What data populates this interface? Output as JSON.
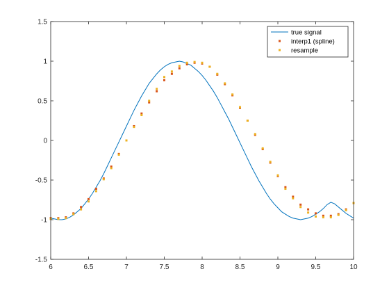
{
  "chart_data": {
    "type": "line",
    "title": "",
    "xlabel": "",
    "ylabel": "",
    "xlim": [
      6,
      10
    ],
    "ylim": [
      -1.5,
      1.5
    ],
    "x_ticks": [
      "6",
      "6.5",
      "7",
      "7.5",
      "8",
      "8.5",
      "9",
      "9.5",
      "10"
    ],
    "x_tick_values": [
      6,
      6.5,
      7,
      7.5,
      8,
      8.5,
      9,
      9.5,
      10
    ],
    "y_ticks": [
      "1.5",
      "1",
      "0.5",
      "0",
      "-0.5",
      "-1",
      "-1.5"
    ],
    "y_tick_values": [
      1.5,
      1,
      0.5,
      0,
      -0.5,
      -1,
      -1.5
    ],
    "grid": false,
    "box": true,
    "legend_position": "top-right",
    "series": [
      {
        "name": "true signal",
        "style": "line",
        "color": "#0072bd",
        "x": [
          6.0,
          6.05,
          6.1,
          6.15,
          6.2,
          6.25,
          6.3,
          6.35,
          6.4,
          6.45,
          6.5,
          6.55,
          6.6,
          6.65,
          6.7,
          6.75,
          6.8,
          6.85,
          6.9,
          6.95,
          7.0,
          7.05,
          7.1,
          7.15,
          7.2,
          7.25,
          7.3,
          7.35,
          7.4,
          7.45,
          7.5,
          7.55,
          7.6,
          7.65,
          7.7,
          7.75,
          7.8,
          7.85,
          7.9,
          7.95,
          8.0,
          8.05,
          8.1,
          8.15,
          8.2,
          8.25,
          8.3,
          8.35,
          8.4,
          8.45,
          8.5,
          8.55,
          8.6,
          8.65,
          8.7,
          8.75,
          8.8,
          8.85,
          8.9,
          8.95,
          9.0,
          9.05,
          9.1,
          9.15,
          9.2,
          9.25,
          9.3,
          9.35,
          9.4,
          9.45,
          9.5,
          9.55,
          9.6,
          9.65,
          9.7,
          9.75,
          9.8,
          9.85,
          9.9,
          9.95,
          10.0
        ],
        "y": [
          -0.98,
          -0.99,
          -1.0,
          -1.0,
          -0.99,
          -0.97,
          -0.94,
          -0.9,
          -0.86,
          -0.8,
          -0.74,
          -0.67,
          -0.59,
          -0.51,
          -0.42,
          -0.32,
          -0.22,
          -0.12,
          -0.02,
          0.08,
          0.18,
          0.28,
          0.38,
          0.47,
          0.56,
          0.64,
          0.72,
          0.78,
          0.84,
          0.89,
          0.93,
          0.96,
          0.98,
          0.99,
          1.0,
          0.99,
          0.97,
          0.95,
          0.91,
          0.87,
          0.82,
          0.76,
          0.69,
          0.62,
          0.54,
          0.45,
          0.36,
          0.27,
          0.17,
          0.07,
          -0.03,
          -0.13,
          -0.23,
          -0.33,
          -0.42,
          -0.51,
          -0.59,
          -0.67,
          -0.74,
          -0.8,
          -0.85,
          -0.9,
          -0.93,
          -0.96,
          -0.98,
          -0.99,
          -1.0,
          -0.99,
          -0.98,
          -0.96,
          -0.93,
          -0.9,
          -0.86,
          -0.81,
          -0.78,
          -0.8,
          -0.84,
          -0.88,
          -0.92,
          -0.95,
          -0.98
        ]
      },
      {
        "name": "interp1 (spline)",
        "style": "points",
        "color": "#d95319",
        "x": [
          6.0,
          6.1,
          6.2,
          6.3,
          6.4,
          6.5,
          6.6,
          6.7,
          6.8,
          6.9,
          7.0,
          7.1,
          7.2,
          7.3,
          7.4,
          7.5,
          7.6,
          7.7,
          7.8,
          7.9,
          8.0,
          8.1,
          8.2,
          8.3,
          8.4,
          8.5,
          8.6,
          8.7,
          8.8,
          8.9,
          9.0,
          9.1,
          9.2,
          9.3,
          9.4,
          9.5,
          9.6,
          9.7,
          9.8,
          9.9,
          10.0
        ],
        "y": [
          -0.98,
          -0.98,
          -0.97,
          -0.92,
          -0.84,
          -0.74,
          -0.61,
          -0.48,
          -0.33,
          -0.17,
          0.0,
          0.18,
          0.34,
          0.48,
          0.62,
          0.76,
          0.84,
          0.91,
          0.96,
          0.98,
          0.97,
          0.93,
          0.83,
          0.71,
          0.57,
          0.41,
          0.25,
          0.07,
          -0.11,
          -0.28,
          -0.45,
          -0.59,
          -0.71,
          -0.81,
          -0.87,
          -0.92,
          -0.95,
          -0.95,
          -0.93,
          -0.87,
          -0.79
        ]
      },
      {
        "name": "resample",
        "style": "points",
        "color": "#edb120",
        "x": [
          6.0,
          6.1,
          6.2,
          6.3,
          6.4,
          6.5,
          6.6,
          6.7,
          6.8,
          6.9,
          7.0,
          7.1,
          7.2,
          7.3,
          7.4,
          7.5,
          7.6,
          7.7,
          7.8,
          7.9,
          8.0,
          8.1,
          8.2,
          8.3,
          8.4,
          8.5,
          8.6,
          8.7,
          8.8,
          8.9,
          9.0,
          9.1,
          9.2,
          9.3,
          9.4,
          9.5,
          9.6,
          9.7,
          9.8,
          9.9,
          10.0
        ],
        "y": [
          -0.99,
          -0.99,
          -0.98,
          -0.93,
          -0.87,
          -0.77,
          -0.64,
          -0.49,
          -0.35,
          -0.18,
          0.0,
          0.17,
          0.32,
          0.5,
          0.65,
          0.8,
          0.87,
          0.94,
          0.98,
          0.99,
          0.98,
          0.93,
          0.84,
          0.72,
          0.58,
          0.42,
          0.25,
          0.08,
          -0.1,
          -0.27,
          -0.44,
          -0.61,
          -0.73,
          -0.84,
          -0.91,
          -0.96,
          -0.97,
          -0.97,
          -0.94,
          -0.88,
          -0.79
        ]
      }
    ]
  }
}
